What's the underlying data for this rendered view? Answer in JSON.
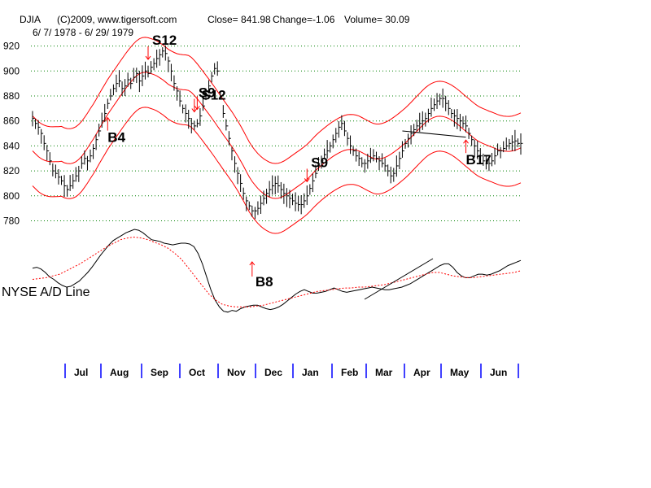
{
  "chart_data": {
    "type": "line",
    "header": {
      "symbol": "DJIA",
      "source": "(C)2009, www.tigersoft.com",
      "close": "Close=   841.98",
      "change": "Change=-1.06",
      "volume": "Volume= 30.09",
      "date_range": "6/ 7/ 1978 - 6/ 29/ 1979"
    },
    "ylim": [
      770,
      925
    ],
    "y_ticks": [
      780,
      800,
      820,
      840,
      860,
      880,
      900,
      920
    ],
    "x_labels": [
      "Jul",
      "Aug",
      "Sep",
      "Oct",
      "Nov",
      "Dec",
      "Jan",
      "Feb",
      "Mar",
      "Apr",
      "May",
      "Jun"
    ],
    "ad_line_label": "NYSE A/D Line",
    "colors": {
      "price": "#000000",
      "bands": "#ff0000",
      "grid": "#008000",
      "signal": "#ff0000",
      "axis_ticks": "#0000ff"
    },
    "price_close": [
      862,
      858,
      855,
      850,
      842,
      836,
      828,
      820,
      818,
      815,
      812,
      808,
      805,
      808,
      812,
      816,
      820,
      826,
      830,
      828,
      832,
      838,
      845,
      852,
      860,
      866,
      874,
      880,
      886,
      890,
      892,
      886,
      888,
      893,
      890,
      895,
      898,
      892,
      896,
      900,
      898,
      903,
      906,
      910,
      913,
      916,
      914,
      908,
      900,
      890,
      884,
      876,
      870,
      866,
      862,
      858,
      856,
      858,
      864,
      872,
      880,
      888,
      896,
      902,
      900,
      880,
      866,
      856,
      846,
      836,
      826,
      818,
      810,
      802,
      796,
      792,
      788,
      788,
      790,
      794,
      798,
      802,
      805,
      808,
      810,
      808,
      805,
      802,
      800,
      798,
      796,
      794,
      793,
      793,
      796,
      800,
      806,
      812,
      818,
      824,
      828,
      833,
      836,
      840,
      845,
      850,
      855,
      858,
      852,
      846,
      840,
      836,
      832,
      830,
      826,
      826,
      828,
      830,
      832,
      830,
      828,
      826,
      824,
      820,
      816,
      818,
      824,
      830,
      836,
      842,
      846,
      850,
      853,
      856,
      858,
      860,
      862,
      866,
      870,
      873,
      876,
      878,
      878,
      874,
      870,
      866,
      864,
      862,
      860,
      858,
      856,
      850,
      845,
      840,
      836,
      832,
      828,
      826,
      826,
      828,
      832,
      836,
      836,
      838,
      840,
      842,
      843,
      844,
      842,
      842
    ],
    "ad_line": [
      0.55,
      0.56,
      0.54,
      0.5,
      0.45,
      0.42,
      0.38,
      0.35,
      0.33,
      0.34,
      0.37,
      0.4,
      0.45,
      0.5,
      0.56,
      0.63,
      0.7,
      0.76,
      0.82,
      0.87,
      0.9,
      0.93,
      0.96,
      0.98,
      1.0,
      0.99,
      0.96,
      0.92,
      0.88,
      0.87,
      0.86,
      0.84,
      0.83,
      0.82,
      0.83,
      0.84,
      0.84,
      0.83,
      0.8,
      0.72,
      0.6,
      0.45,
      0.3,
      0.18,
      0.1,
      0.05,
      0.04,
      0.06,
      0.05,
      0.08,
      0.1,
      0.11,
      0.12,
      0.12,
      0.1,
      0.08,
      0.07,
      0.08,
      0.1,
      0.13,
      0.17,
      0.21,
      0.25,
      0.28,
      0.3,
      0.28,
      0.26,
      0.26,
      0.27,
      0.28,
      0.3,
      0.32,
      0.3,
      0.28,
      0.27,
      0.28,
      0.29,
      0.3,
      0.31,
      0.32,
      0.33,
      0.32,
      0.31,
      0.3,
      0.3,
      0.31,
      0.32,
      0.33,
      0.35,
      0.37,
      0.4,
      0.43,
      0.46,
      0.49,
      0.52,
      0.55,
      0.58,
      0.6,
      0.6,
      0.56,
      0.5,
      0.46,
      0.44,
      0.44,
      0.46,
      0.48,
      0.48,
      0.47,
      0.48,
      0.5,
      0.52,
      0.55,
      0.58,
      0.6,
      0.62,
      0.64
    ],
    "ad_moving_average": [
      0.42,
      0.43,
      0.44,
      0.46,
      0.48,
      0.52,
      0.56,
      0.6,
      0.65,
      0.7,
      0.75,
      0.8,
      0.84,
      0.88,
      0.9,
      0.91,
      0.9,
      0.88,
      0.85,
      0.82,
      0.78,
      0.72,
      0.65,
      0.55,
      0.45,
      0.35,
      0.25,
      0.18,
      0.13,
      0.11,
      0.1,
      0.1,
      0.1,
      0.11,
      0.12,
      0.14,
      0.16,
      0.18,
      0.2,
      0.22,
      0.24,
      0.26,
      0.28,
      0.29,
      0.3,
      0.31,
      0.32,
      0.32,
      0.33,
      0.33,
      0.34,
      0.35,
      0.36,
      0.38,
      0.4,
      0.42,
      0.44,
      0.46,
      0.48,
      0.5,
      0.5,
      0.48,
      0.46,
      0.45,
      0.44,
      0.44,
      0.45,
      0.46,
      0.47,
      0.48,
      0.49,
      0.5,
      0.52
    ],
    "signals": [
      {
        "label": "S12",
        "index": 40
      },
      {
        "label": "S9",
        "index": 56
      },
      {
        "label": "S12",
        "index": 57
      },
      {
        "label": "S9",
        "index": 95
      },
      {
        "label": "B17",
        "index": 150
      },
      {
        "label": "B4",
        "index": 26
      },
      {
        "label": "B8",
        "index": 76
      }
    ]
  }
}
